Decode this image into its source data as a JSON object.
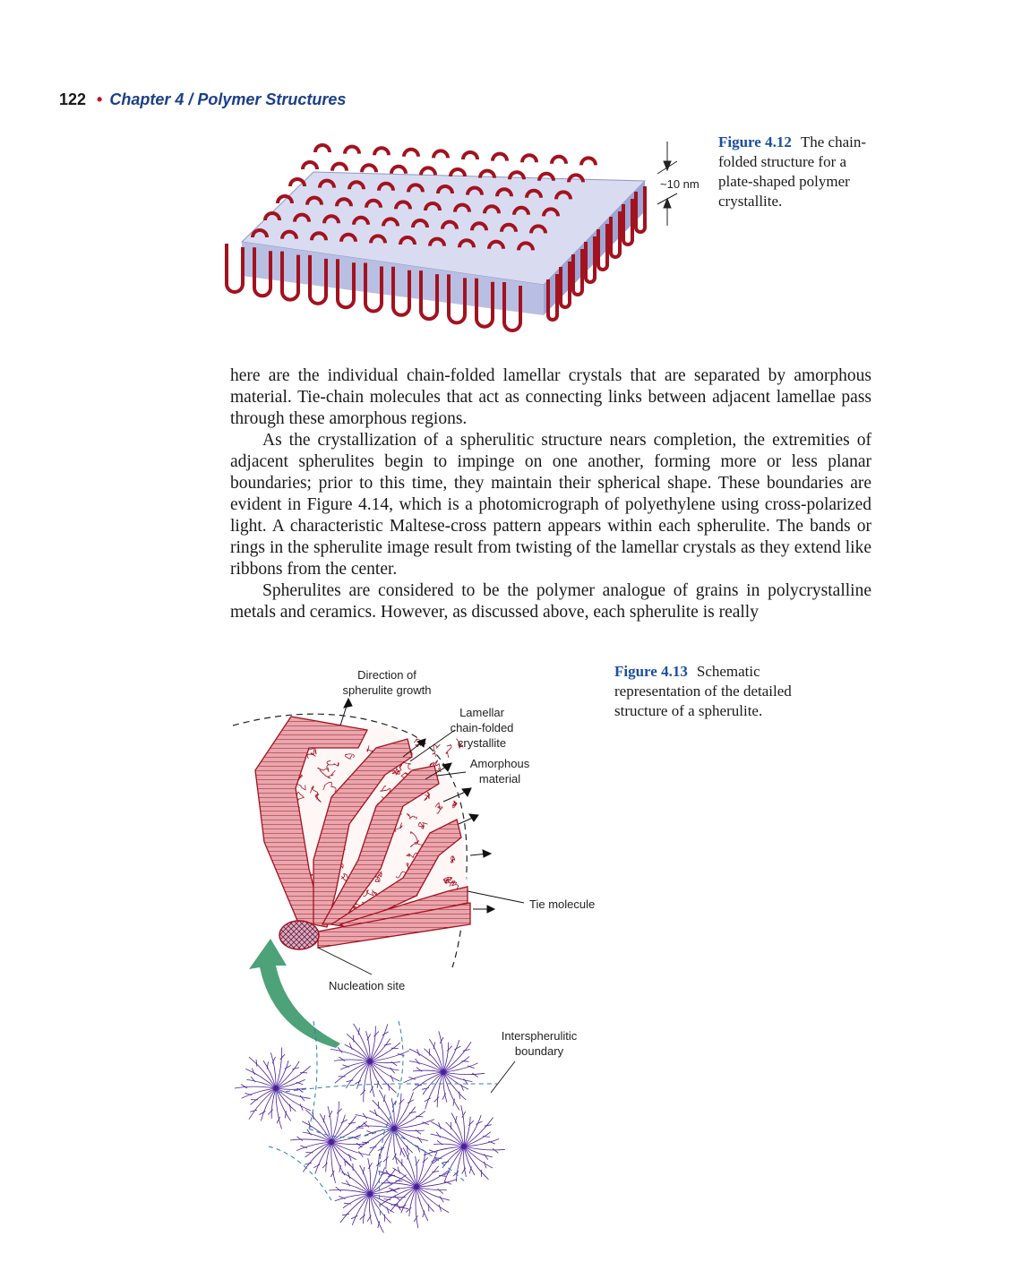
{
  "header": {
    "page_number": "122",
    "bullet": "•",
    "chapter": "Chapter 4  /  Polymer Structures"
  },
  "figure_4_12": {
    "label": "Figure 4.12",
    "caption": "The chain-folded structure for a plate-shaped polymer crystallite.",
    "dimension_label": "~10 nm"
  },
  "body_text": {
    "p1": "here are the individual chain-folded lamellar crystals that are separated by amorphous material. Tie-chain molecules that act as connecting links between adjacent lamellae pass through these amorphous regions.",
    "p2": "As the crystallization of a spherulitic structure nears completion, the extremities of adjacent spherulites begin to impinge on one another, forming more or less planar boundaries; prior to this time, they maintain their spherical shape. These boundaries are evident in Figure 4.14, which is a photomicrograph of polyethylene using cross-polarized light. A characteristic Maltese-cross pattern appears within each spherulite. The bands or rings in the spherulite image result from twisting of the lamellar crystals as they extend like ribbons from the center.",
    "p3": "Spherulites are considered to be the polymer analogue of grains in polycrystalline metals and ceramics. However, as discussed above, each spherulite is really"
  },
  "figure_4_13": {
    "label": "Figure 4.13",
    "caption": "Schematic representation of the detailed structure of a spherulite.",
    "labels": {
      "direction_1": "Direction of",
      "direction_2": "spherulite growth",
      "lamellar_1": "Lamellar",
      "lamellar_2": "chain-folded",
      "lamellar_3": "crystallite",
      "amorphous_1": "Amorphous",
      "amorphous_2": "material",
      "tie": "Tie molecule",
      "nucleation": "Nucleation site",
      "boundary_1": "Interspherulitic",
      "boundary_2": "boundary"
    }
  },
  "colors": {
    "chain": "#a3121f",
    "plate": "#c4c9e6",
    "caption_label": "#1b4fa0",
    "chapter": "#1b3f8b",
    "arrow": "#4ea27a",
    "spherulite": "#4b1f9a"
  }
}
